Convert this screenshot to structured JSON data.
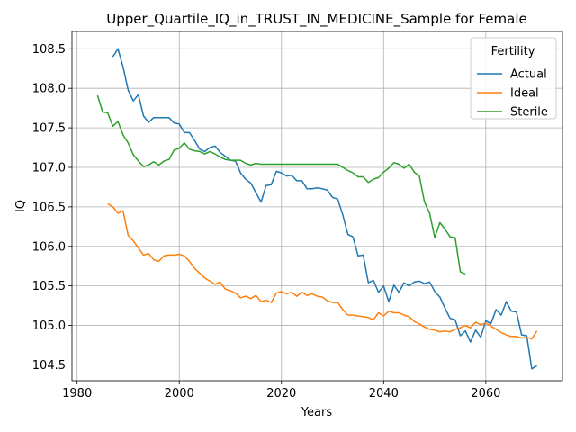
{
  "chart_data": {
    "type": "line",
    "title": "Upper_Quartile_IQ_in_TRUST_IN_MEDICINE_Sample for Female",
    "xlabel": "Years",
    "ylabel": "IQ",
    "xlim": [
      1979,
      2075
    ],
    "ylim": [
      104.3,
      108.72
    ],
    "xticks": [
      1980,
      2000,
      2020,
      2040,
      2060
    ],
    "yticks": [
      104.5,
      105.0,
      105.5,
      106.0,
      106.5,
      107.0,
      107.5,
      108.0,
      108.5
    ],
    "grid": true,
    "legend": {
      "title": "Fertility",
      "placement": "top-right"
    },
    "series": [
      {
        "name": "Actual",
        "color": "#1f77b4",
        "x": [
          1987,
          1988,
          1989,
          1990,
          1991,
          1992,
          1993,
          1994,
          1995,
          1996,
          1997,
          1998,
          1999,
          2000,
          2001,
          2002,
          2003,
          2004,
          2005,
          2006,
          2007,
          2008,
          2009,
          2010,
          2011,
          2012,
          2013,
          2014,
          2015,
          2016,
          2017,
          2018,
          2019,
          2020,
          2021,
          2022,
          2023,
          2024,
          2025,
          2026,
          2027,
          2028,
          2029,
          2030,
          2031,
          2032,
          2033,
          2034,
          2035,
          2036,
          2037,
          2038,
          2039,
          2040,
          2041,
          2042,
          2043,
          2044,
          2045,
          2046,
          2047,
          2048,
          2049,
          2050,
          2051,
          2052,
          2053,
          2054,
          2055,
          2056,
          2057,
          2058,
          2059,
          2060,
          2061,
          2062,
          2063,
          2064,
          2065,
          2066,
          2067,
          2068,
          2069,
          2070
        ],
        "values": [
          108.4,
          108.5,
          108.27,
          107.98,
          107.84,
          107.92,
          107.65,
          107.57,
          107.63,
          107.63,
          107.63,
          107.63,
          107.56,
          107.55,
          107.44,
          107.44,
          107.34,
          107.23,
          107.2,
          107.25,
          107.27,
          107.19,
          107.14,
          107.09,
          107.08,
          106.93,
          106.85,
          106.8,
          106.68,
          106.56,
          106.77,
          106.78,
          106.95,
          106.93,
          106.89,
          106.9,
          106.83,
          106.83,
          106.73,
          106.73,
          106.74,
          106.73,
          106.71,
          106.62,
          106.6,
          106.4,
          106.15,
          106.12,
          105.88,
          105.89,
          105.54,
          105.57,
          105.42,
          105.5,
          105.3,
          105.51,
          105.42,
          105.54,
          105.5,
          105.55,
          105.56,
          105.53,
          105.55,
          105.43,
          105.36,
          105.22,
          105.09,
          105.07,
          104.87,
          104.93,
          104.79,
          104.94,
          104.85,
          105.06,
          105.02,
          105.2,
          105.13,
          105.3,
          105.18,
          105.17,
          104.88,
          104.87,
          104.45,
          104.49
        ]
      },
      {
        "name": "Ideal",
        "color": "#ff7f0e",
        "x": [
          1986,
          1987,
          1988,
          1989,
          1990,
          1991,
          1992,
          1993,
          1994,
          1995,
          1996,
          1997,
          1998,
          1999,
          2000,
          2001,
          2002,
          2003,
          2004,
          2005,
          2006,
          2007,
          2008,
          2009,
          2010,
          2011,
          2012,
          2013,
          2014,
          2015,
          2016,
          2017,
          2018,
          2019,
          2020,
          2021,
          2022,
          2023,
          2024,
          2025,
          2026,
          2027,
          2028,
          2029,
          2030,
          2031,
          2032,
          2033,
          2034,
          2035,
          2036,
          2037,
          2038,
          2039,
          2040,
          2041,
          2042,
          2043,
          2044,
          2045,
          2046,
          2047,
          2048,
          2049,
          2050,
          2051,
          2052,
          2053,
          2054,
          2055,
          2056,
          2057,
          2058,
          2059,
          2060,
          2061,
          2062,
          2063,
          2064,
          2065,
          2066,
          2067,
          2068,
          2069,
          2070
        ],
        "values": [
          106.54,
          106.5,
          106.42,
          106.45,
          106.14,
          106.07,
          105.98,
          105.89,
          105.91,
          105.83,
          105.81,
          105.88,
          105.89,
          105.89,
          105.9,
          105.88,
          105.81,
          105.72,
          105.66,
          105.6,
          105.56,
          105.52,
          105.55,
          105.46,
          105.44,
          105.41,
          105.35,
          105.37,
          105.34,
          105.38,
          105.3,
          105.32,
          105.29,
          105.41,
          105.43,
          105.4,
          105.42,
          105.37,
          105.42,
          105.38,
          105.4,
          105.37,
          105.36,
          105.31,
          105.29,
          105.29,
          105.2,
          105.13,
          105.13,
          105.12,
          105.11,
          105.1,
          105.07,
          105.16,
          105.12,
          105.18,
          105.16,
          105.16,
          105.13,
          105.11,
          105.05,
          105.02,
          104.98,
          104.95,
          104.94,
          104.92,
          104.93,
          104.92,
          104.95,
          104.97,
          105.0,
          104.97,
          105.04,
          105.01,
          105.03,
          104.99,
          104.95,
          104.91,
          104.88,
          104.86,
          104.86,
          104.84,
          104.85,
          104.83,
          104.93
        ]
      },
      {
        "name": "Sterile",
        "color": "#2ca02c",
        "x": [
          1984,
          1985,
          1986,
          1987,
          1988,
          1989,
          1990,
          1991,
          1992,
          1993,
          1994,
          1995,
          1996,
          1997,
          1998,
          1999,
          2000,
          2001,
          2002,
          2003,
          2004,
          2005,
          2006,
          2007,
          2008,
          2009,
          2010,
          2011,
          2012,
          2013,
          2014,
          2015,
          2016,
          2017,
          2018,
          2019,
          2020,
          2021,
          2022,
          2023,
          2024,
          2025,
          2026,
          2027,
          2028,
          2029,
          2030,
          2031,
          2032,
          2033,
          2034,
          2035,
          2036,
          2037,
          2038,
          2039,
          2040,
          2041,
          2042,
          2043,
          2044,
          2045,
          2046,
          2047,
          2048,
          2049,
          2050,
          2051,
          2052,
          2053,
          2054,
          2055,
          2056
        ],
        "values": [
          107.91,
          107.7,
          107.69,
          107.52,
          107.58,
          107.41,
          107.31,
          107.16,
          107.08,
          107.01,
          107.03,
          107.07,
          107.03,
          107.08,
          107.1,
          107.22,
          107.24,
          107.31,
          107.23,
          107.21,
          107.2,
          107.17,
          107.2,
          107.17,
          107.13,
          107.1,
          107.09,
          107.09,
          107.09,
          107.05,
          107.03,
          107.05,
          107.04,
          107.04,
          107.04,
          107.04,
          107.04,
          107.04,
          107.04,
          107.04,
          107.04,
          107.04,
          107.04,
          107.04,
          107.04,
          107.04,
          107.04,
          107.04,
          107.0,
          106.96,
          106.93,
          106.88,
          106.88,
          106.81,
          106.85,
          106.87,
          106.94,
          106.99,
          107.06,
          107.04,
          106.99,
          107.04,
          106.94,
          106.89,
          106.56,
          106.42,
          106.11,
          106.3,
          106.22,
          106.12,
          106.11,
          105.68,
          105.65
        ]
      }
    ]
  }
}
